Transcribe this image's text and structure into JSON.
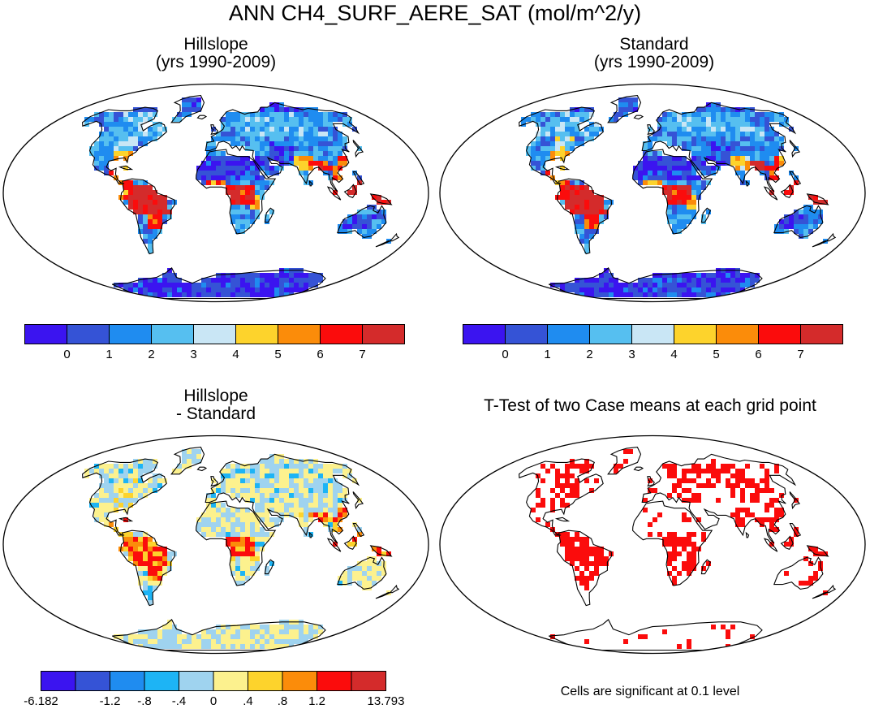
{
  "title": "ANN CH4_SURF_AERE_SAT (mol/m^2/y)",
  "panels": [
    {
      "id": "tl",
      "title_lines": [
        "Hillslope",
        "(yrs 1990-2009)"
      ],
      "palette": [
        "#3b14f0",
        "#3553d6",
        "#1f8cf0",
        "#56bff0",
        "#c9e6f5",
        "#fdd32c",
        "#fb8c0a",
        "#fb0c0c",
        "#d42b2b"
      ],
      "colorbar": {
        "colors": [
          "#3b14f0",
          "#3553d6",
          "#1f8cf0",
          "#56bff0",
          "#c9e6f5",
          "#fdd32c",
          "#fb8c0a",
          "#fb0c0c",
          "#d42b2b"
        ],
        "labels": [
          "0",
          "1",
          "2",
          "3",
          "4",
          "5",
          "6",
          "7"
        ],
        "label_at": [
          1,
          2,
          3,
          4,
          5,
          6,
          7,
          8
        ]
      }
    },
    {
      "id": "tr",
      "title_lines": [
        "Standard",
        "(yrs 1990-2009)"
      ],
      "palette": [
        "#3b14f0",
        "#3553d6",
        "#1f8cf0",
        "#56bff0",
        "#c9e6f5",
        "#fdd32c",
        "#fb8c0a",
        "#fb0c0c",
        "#d42b2b"
      ],
      "colorbar": {
        "colors": [
          "#3b14f0",
          "#3553d6",
          "#1f8cf0",
          "#56bff0",
          "#c9e6f5",
          "#fdd32c",
          "#fb8c0a",
          "#fb0c0c",
          "#d42b2b"
        ],
        "labels": [
          "0",
          "1",
          "2",
          "3",
          "4",
          "5",
          "6",
          "7"
        ],
        "label_at": [
          1,
          2,
          3,
          4,
          5,
          6,
          7,
          8
        ]
      }
    },
    {
      "id": "bl",
      "title_lines": [
        "Hillslope",
        "- Standard"
      ],
      "palette": [
        "#3b14f0",
        "#3553d6",
        "#1f8cf0",
        "#1db4f5",
        "#9fd3ef",
        "#fcf18e",
        "#fdd32c",
        "#fb8c0a",
        "#fb0c0c",
        "#d42b2b"
      ],
      "colorbar": {
        "colors": [
          "#3b14f0",
          "#3553d6",
          "#1f8cf0",
          "#1db4f5",
          "#9fd3ef",
          "#fcf18e",
          "#fdd32c",
          "#fb8c0a",
          "#fb0c0c",
          "#d42b2b"
        ],
        "labels": [
          "-6.182",
          "-1.2",
          "-.8",
          "-.4",
          "0",
          ".4",
          ".8",
          "1.2",
          "13.793"
        ],
        "label_at": [
          0,
          2,
          3,
          4,
          5,
          6,
          7,
          8,
          10
        ]
      }
    },
    {
      "id": "br",
      "title_lines": [
        "T-Test of two Case means at each grid point"
      ],
      "palette": [
        "#fb0c0c"
      ],
      "footnote": "Cells are significant at 0.1 level"
    }
  ]
}
